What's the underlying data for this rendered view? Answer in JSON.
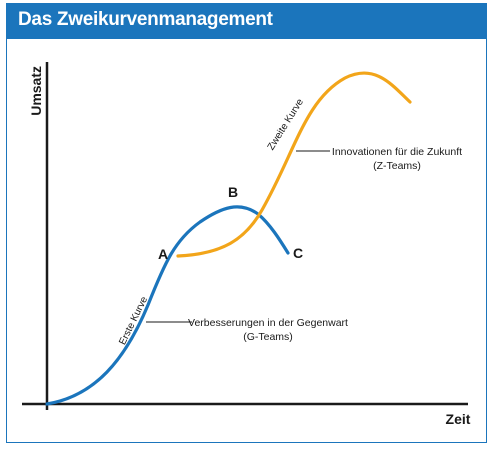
{
  "title": "Das Zweikurvenmanagement",
  "axes": {
    "y_label": "Umsatz",
    "x_label": "Zeit"
  },
  "points": {
    "a": "A",
    "b": "B",
    "c": "C"
  },
  "curves": {
    "first": {
      "label": "Erste Kurve",
      "color": "#1b75bc",
      "callout_line1": "Verbesserungen in der Gegenwart",
      "callout_line2": "(G-Teams)"
    },
    "second": {
      "label": "Zweite Kurve",
      "color": "#f2a51a",
      "callout_line1": "Innovationen für die Zukunft",
      "callout_line2": "(Z-Teams)"
    }
  },
  "colors": {
    "header": "#1b75bc",
    "axis": "#1a1a1a"
  }
}
